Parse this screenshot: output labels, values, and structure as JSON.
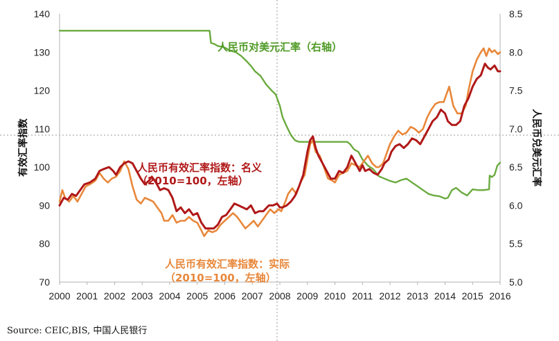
{
  "chart_data": {
    "type": "line",
    "x_ticks": [
      "2000",
      "2001",
      "2002",
      "2003",
      "2004",
      "2005",
      "2006",
      "2007",
      "2008",
      "2009",
      "2010",
      "2011",
      "2012",
      "2013",
      "2014",
      "2015",
      "2016"
    ],
    "y_left": {
      "label": "有效汇率指数",
      "range": [
        70,
        140
      ],
      "ticks": [
        "70",
        "80",
        "90",
        "100",
        "110",
        "120",
        "130",
        "140"
      ]
    },
    "y_right": {
      "label": "人民币兑美元汇率",
      "range": [
        5.0,
        8.5
      ],
      "ticks": [
        "5.0",
        "5.5",
        "6.0",
        "6.5",
        "7.0",
        "7.5",
        "8.0",
        "8.5"
      ]
    },
    "grid": false,
    "colors": {
      "nominal": "#b01818",
      "real": "#e8873a",
      "cny_usd": "#6aaa3e",
      "guide": "#999999"
    },
    "annotations": {
      "cny_usd": "人民币对美元汇率（右轴）",
      "nominal_1": "人民币有效汇率指数：名义",
      "nominal_2": "（2010=100，左轴）",
      "real_1": "人民币有效汇率指数：实际",
      "real_2": "（2010=100，左轴）"
    },
    "series": [
      {
        "key": "nominal",
        "axis": "left",
        "points": [
          [
            2000.0,
            90
          ],
          [
            2000.15,
            92
          ],
          [
            2000.3,
            91.5
          ],
          [
            2000.45,
            93
          ],
          [
            2000.6,
            92.5
          ],
          [
            2000.75,
            94
          ],
          [
            2000.9,
            95.5
          ],
          [
            2001.1,
            96
          ],
          [
            2001.3,
            97
          ],
          [
            2001.45,
            99
          ],
          [
            2001.6,
            99.5
          ],
          [
            2001.8,
            100
          ],
          [
            2001.95,
            99
          ],
          [
            2002.05,
            98
          ],
          [
            2002.2,
            100
          ],
          [
            2002.35,
            101
          ],
          [
            2002.5,
            101.5
          ],
          [
            2002.65,
            101
          ],
          [
            2002.8,
            99
          ],
          [
            2002.95,
            97
          ],
          [
            2003.1,
            95.5
          ],
          [
            2003.25,
            96.5
          ],
          [
            2003.35,
            97.5
          ],
          [
            2003.5,
            96
          ],
          [
            2003.65,
            94
          ],
          [
            2003.8,
            94.5
          ],
          [
            2003.95,
            94
          ],
          [
            2004.1,
            92
          ],
          [
            2004.25,
            88.5
          ],
          [
            2004.4,
            89.5
          ],
          [
            2004.55,
            88
          ],
          [
            2004.7,
            89
          ],
          [
            2004.85,
            87.5
          ],
          [
            2005.0,
            88
          ],
          [
            2005.15,
            85.5
          ],
          [
            2005.3,
            84
          ],
          [
            2005.45,
            84
          ],
          [
            2005.6,
            84
          ],
          [
            2005.75,
            85
          ],
          [
            2005.9,
            87
          ],
          [
            2006.05,
            87.5
          ],
          [
            2006.2,
            89
          ],
          [
            2006.35,
            90.5
          ],
          [
            2006.5,
            90
          ],
          [
            2006.65,
            89.5
          ],
          [
            2006.8,
            89
          ],
          [
            2006.95,
            90
          ],
          [
            2007.1,
            88
          ],
          [
            2007.25,
            88.5
          ],
          [
            2007.4,
            88.5
          ],
          [
            2007.6,
            90
          ],
          [
            2007.75,
            90
          ],
          [
            2007.9,
            90.5
          ],
          [
            2008.0,
            89.5
          ],
          [
            2008.1,
            89.5
          ],
          [
            2008.25,
            90
          ],
          [
            2008.4,
            91
          ],
          [
            2008.55,
            92.5
          ],
          [
            2008.7,
            95
          ],
          [
            2008.85,
            98
          ],
          [
            2009.0,
            104
          ],
          [
            2009.1,
            107
          ],
          [
            2009.2,
            108
          ],
          [
            2009.3,
            105
          ],
          [
            2009.4,
            103
          ],
          [
            2009.55,
            101
          ],
          [
            2009.7,
            99
          ],
          [
            2009.85,
            97
          ],
          [
            2010.0,
            97
          ],
          [
            2010.15,
            99
          ],
          [
            2010.3,
            98.5
          ],
          [
            2010.45,
            100
          ],
          [
            2010.6,
            103
          ],
          [
            2010.75,
            101
          ],
          [
            2010.9,
            99
          ],
          [
            2011.0,
            100.5
          ],
          [
            2011.1,
            99
          ],
          [
            2011.25,
            99.5
          ],
          [
            2011.4,
            98.5
          ],
          [
            2011.55,
            98
          ],
          [
            2011.7,
            99.5
          ],
          [
            2011.8,
            101
          ],
          [
            2011.95,
            102
          ],
          [
            2012.05,
            104
          ],
          [
            2012.2,
            105.5
          ],
          [
            2012.35,
            106
          ],
          [
            2012.5,
            105
          ],
          [
            2012.65,
            106
          ],
          [
            2012.8,
            107.5
          ],
          [
            2012.95,
            107
          ],
          [
            2013.1,
            106
          ],
          [
            2013.25,
            108
          ],
          [
            2013.4,
            110
          ],
          [
            2013.55,
            112
          ],
          [
            2013.7,
            113
          ],
          [
            2013.85,
            115
          ],
          [
            2014.0,
            114
          ],
          [
            2014.1,
            112
          ],
          [
            2014.25,
            111
          ],
          [
            2014.4,
            111
          ],
          [
            2014.55,
            112
          ],
          [
            2014.7,
            116
          ],
          [
            2014.85,
            118
          ],
          [
            2015.0,
            121
          ],
          [
            2015.15,
            123
          ],
          [
            2015.3,
            124
          ],
          [
            2015.45,
            127
          ],
          [
            2015.55,
            126
          ],
          [
            2015.65,
            125.5
          ],
          [
            2015.8,
            126.5
          ],
          [
            2015.92,
            125
          ],
          [
            2016.0,
            125
          ]
        ]
      },
      {
        "key": "real",
        "axis": "left",
        "points": [
          [
            2000.0,
            91
          ],
          [
            2000.1,
            94
          ],
          [
            2000.2,
            92
          ],
          [
            2000.35,
            91
          ],
          [
            2000.5,
            92.5
          ],
          [
            2000.65,
            91
          ],
          [
            2000.8,
            93
          ],
          [
            2000.95,
            95
          ],
          [
            2001.1,
            95.5
          ],
          [
            2001.3,
            96.5
          ],
          [
            2001.45,
            98.5
          ],
          [
            2001.6,
            97
          ],
          [
            2001.75,
            96
          ],
          [
            2001.9,
            97
          ],
          [
            2002.05,
            97.5
          ],
          [
            2002.2,
            99
          ],
          [
            2002.35,
            101.5
          ],
          [
            2002.5,
            99.5
          ],
          [
            2002.65,
            95
          ],
          [
            2002.8,
            91.5
          ],
          [
            2002.95,
            90.5
          ],
          [
            2003.1,
            92
          ],
          [
            2003.25,
            91.5
          ],
          [
            2003.4,
            91
          ],
          [
            2003.55,
            89.5
          ],
          [
            2003.7,
            88
          ],
          [
            2003.8,
            86
          ],
          [
            2003.95,
            86
          ],
          [
            2004.1,
            87.5
          ],
          [
            2004.25,
            85.5
          ],
          [
            2004.4,
            86
          ],
          [
            2004.55,
            86
          ],
          [
            2004.7,
            87
          ],
          [
            2004.85,
            86
          ],
          [
            2005.0,
            85.5
          ],
          [
            2005.15,
            83.5
          ],
          [
            2005.25,
            82
          ],
          [
            2005.4,
            83.5
          ],
          [
            2005.55,
            83
          ],
          [
            2005.7,
            83.5
          ],
          [
            2005.85,
            85
          ],
          [
            2006.0,
            86
          ],
          [
            2006.15,
            87
          ],
          [
            2006.3,
            88
          ],
          [
            2006.45,
            87
          ],
          [
            2006.6,
            85.5
          ],
          [
            2006.75,
            84
          ],
          [
            2006.9,
            85
          ],
          [
            2007.05,
            86
          ],
          [
            2007.2,
            84.5
          ],
          [
            2007.35,
            86
          ],
          [
            2007.5,
            87.5
          ],
          [
            2007.65,
            89
          ],
          [
            2007.8,
            88
          ],
          [
            2007.95,
            89
          ],
          [
            2008.05,
            88.5
          ],
          [
            2008.2,
            91
          ],
          [
            2008.3,
            93
          ],
          [
            2008.45,
            94.5
          ],
          [
            2008.6,
            93
          ],
          [
            2008.75,
            96
          ],
          [
            2008.9,
            98
          ],
          [
            2009.0,
            102
          ],
          [
            2009.1,
            106
          ],
          [
            2009.2,
            107
          ],
          [
            2009.3,
            104
          ],
          [
            2009.45,
            103
          ],
          [
            2009.6,
            100
          ],
          [
            2009.75,
            97
          ],
          [
            2009.9,
            96.5
          ],
          [
            2010.0,
            96
          ],
          [
            2010.15,
            98
          ],
          [
            2010.3,
            98.5
          ],
          [
            2010.45,
            99
          ],
          [
            2010.6,
            101
          ],
          [
            2010.75,
            100.5
          ],
          [
            2010.9,
            100
          ],
          [
            2011.05,
            101.5
          ],
          [
            2011.2,
            103
          ],
          [
            2011.35,
            101
          ],
          [
            2011.5,
            100
          ],
          [
            2011.6,
            100
          ],
          [
            2011.75,
            101
          ],
          [
            2011.85,
            103
          ],
          [
            2012.0,
            106
          ],
          [
            2012.15,
            108
          ],
          [
            2012.3,
            109.5
          ],
          [
            2012.45,
            108.5
          ],
          [
            2012.6,
            109
          ],
          [
            2012.75,
            110.5
          ],
          [
            2012.9,
            110
          ],
          [
            2013.05,
            109
          ],
          [
            2013.2,
            110
          ],
          [
            2013.35,
            113
          ],
          [
            2013.5,
            115
          ],
          [
            2013.65,
            116.5
          ],
          [
            2013.8,
            117
          ],
          [
            2013.95,
            117
          ],
          [
            2014.05,
            119
          ],
          [
            2014.15,
            121
          ],
          [
            2014.3,
            116
          ],
          [
            2014.45,
            114
          ],
          [
            2014.6,
            114
          ],
          [
            2014.75,
            116
          ],
          [
            2014.85,
            120
          ],
          [
            2015.0,
            125
          ],
          [
            2015.15,
            128
          ],
          [
            2015.3,
            130
          ],
          [
            2015.4,
            131
          ],
          [
            2015.5,
            129
          ],
          [
            2015.6,
            131
          ],
          [
            2015.7,
            130
          ],
          [
            2015.8,
            130.5
          ],
          [
            2015.92,
            129.5
          ],
          [
            2016.0,
            130
          ]
        ]
      },
      {
        "key": "cny_usd",
        "axis": "right",
        "points": [
          [
            2000.0,
            8.28
          ],
          [
            2005.45,
            8.28
          ],
          [
            2005.5,
            8.12
          ],
          [
            2005.6,
            8.11
          ],
          [
            2005.75,
            8.08
          ],
          [
            2005.9,
            8.07
          ],
          [
            2006.0,
            8.06
          ],
          [
            2006.2,
            8.02
          ],
          [
            2006.4,
            8.0
          ],
          [
            2006.6,
            7.95
          ],
          [
            2006.8,
            7.88
          ],
          [
            2006.95,
            7.82
          ],
          [
            2007.1,
            7.75
          ],
          [
            2007.3,
            7.69
          ],
          [
            2007.5,
            7.58
          ],
          [
            2007.7,
            7.5
          ],
          [
            2007.85,
            7.45
          ],
          [
            2008.0,
            7.3
          ],
          [
            2008.1,
            7.15
          ],
          [
            2008.25,
            7.03
          ],
          [
            2008.4,
            6.92
          ],
          [
            2008.55,
            6.85
          ],
          [
            2008.7,
            6.83
          ],
          [
            2010.45,
            6.83
          ],
          [
            2010.55,
            6.8
          ],
          [
            2010.7,
            6.73
          ],
          [
            2010.85,
            6.7
          ],
          [
            2011.0,
            6.6
          ],
          [
            2011.2,
            6.52
          ],
          [
            2011.4,
            6.47
          ],
          [
            2011.6,
            6.38
          ],
          [
            2011.8,
            6.35
          ],
          [
            2012.0,
            6.32
          ],
          [
            2012.2,
            6.3
          ],
          [
            2012.4,
            6.33
          ],
          [
            2012.6,
            6.35
          ],
          [
            2012.8,
            6.3
          ],
          [
            2013.0,
            6.25
          ],
          [
            2013.2,
            6.2
          ],
          [
            2013.4,
            6.15
          ],
          [
            2013.6,
            6.13
          ],
          [
            2013.8,
            6.12
          ],
          [
            2014.0,
            6.09
          ],
          [
            2014.1,
            6.1
          ],
          [
            2014.25,
            6.2
          ],
          [
            2014.4,
            6.23
          ],
          [
            2014.6,
            6.17
          ],
          [
            2014.8,
            6.13
          ],
          [
            2015.0,
            6.21
          ],
          [
            2015.2,
            6.2
          ],
          [
            2015.4,
            6.2
          ],
          [
            2015.6,
            6.21
          ],
          [
            2015.62,
            6.39
          ],
          [
            2015.7,
            6.37
          ],
          [
            2015.8,
            6.4
          ],
          [
            2015.9,
            6.52
          ],
          [
            2016.0,
            6.56
          ]
        ]
      }
    ]
  },
  "source": "Source: CEIC,BIS, 中国人民银行"
}
